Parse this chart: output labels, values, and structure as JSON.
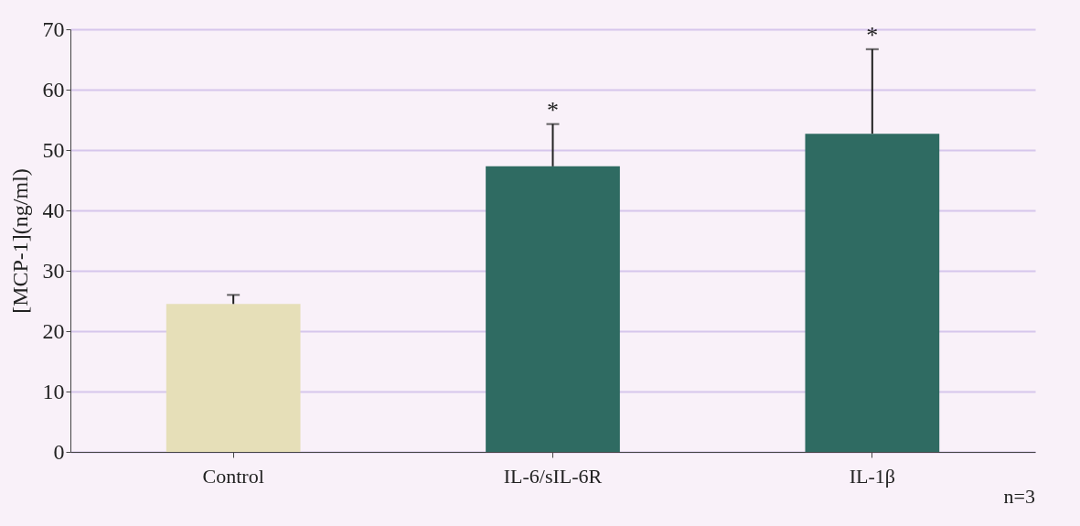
{
  "chart_data": {
    "type": "bar",
    "ylabel": "[MCP-1](ng/ml)",
    "categories": [
      "Control",
      "IL-6/sIL-6R",
      "IL-1β"
    ],
    "values": [
      24.5,
      47.3,
      52.7
    ],
    "colors": [
      "#e6dfb8",
      "#2f6b62",
      "#2f6b62"
    ],
    "errors": [
      1.5,
      7,
      14
    ],
    "ylim": [
      0,
      70
    ],
    "yticks": [
      0,
      10,
      20,
      30,
      40,
      50,
      60,
      70
    ],
    "grid": "y",
    "annotations": [
      {
        "text": "*",
        "x": "IL-6/sIL-6R",
        "y": 54.3
      },
      {
        "text": "*",
        "x": "IL-1β",
        "y": 66.7
      },
      "n=3"
    ]
  }
}
